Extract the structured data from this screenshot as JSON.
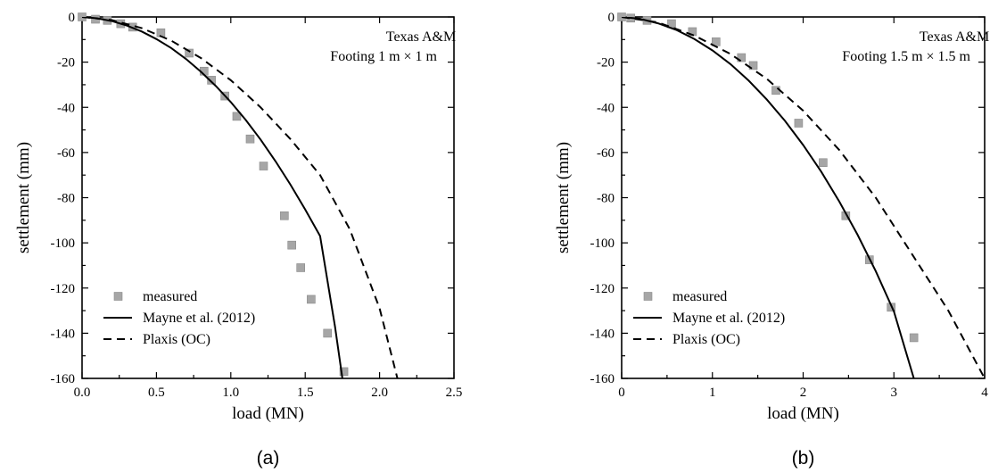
{
  "chart_data": [
    {
      "type": "line",
      "caption": "(a)",
      "xlabel": "load (MN)",
      "ylabel": "settlement (mm)",
      "xlim": [
        0,
        2.5
      ],
      "ylim": [
        -160,
        0
      ],
      "xticks": [
        0.0,
        0.5,
        1.0,
        1.5,
        2.0,
        2.5
      ],
      "xticklabels": [
        "0.0",
        "0.5",
        "1.0",
        "1.5",
        "2.0",
        "2.5"
      ],
      "yticks": [
        0,
        -20,
        -40,
        -60,
        -80,
        -100,
        -120,
        -140,
        -160
      ],
      "yticklabels": [
        "0",
        "-20",
        "-40",
        "-60",
        "-80",
        "-100",
        "-120",
        "-140",
        "-160"
      ],
      "annotation": [
        "Texas A&M",
        "Footing 1 m × 1 m"
      ],
      "legend": [
        "measured",
        "Mayne et al. (2012)",
        "Plaxis (OC)"
      ],
      "legend_position": "bottom-left",
      "series": [
        {
          "name": "measured",
          "style": "square-markers",
          "color": "#a6a6a6",
          "x": [
            0.0,
            0.09,
            0.17,
            0.26,
            0.34,
            0.53,
            0.72,
            0.82,
            0.87,
            0.96,
            1.04,
            1.13,
            1.22,
            1.36,
            1.41,
            1.47,
            1.54,
            1.65,
            1.76
          ],
          "y": [
            0,
            -1,
            -1.5,
            -3,
            -4.5,
            -7,
            -16,
            -24,
            -28,
            -35,
            -44,
            -54,
            -66,
            -88,
            -101,
            -111,
            -125,
            -140,
            -157
          ]
        },
        {
          "name": "Mayne et al. (2012)",
          "style": "solid",
          "color": "#000000",
          "x": [
            0.0,
            0.1,
            0.2,
            0.3,
            0.4,
            0.5,
            0.6,
            0.7,
            0.8,
            0.9,
            1.0,
            1.1,
            1.2,
            1.3,
            1.4,
            1.5,
            1.6,
            1.7,
            1.75
          ],
          "y": [
            0,
            -0.6,
            -1.8,
            -3.8,
            -6.4,
            -9.8,
            -13.8,
            -18.7,
            -24.3,
            -30.6,
            -37.7,
            -45.6,
            -54.3,
            -63.8,
            -74.1,
            -85.2,
            -97,
            -137,
            -160
          ]
        },
        {
          "name": "Plaxis (OC)",
          "style": "dashed",
          "color": "#000000",
          "x": [
            0.0,
            0.2,
            0.4,
            0.6,
            0.8,
            1.0,
            1.2,
            1.4,
            1.6,
            1.8,
            2.0,
            2.12
          ],
          "y": [
            0,
            -1.4,
            -4.9,
            -10.5,
            -18.2,
            -28,
            -40,
            -54,
            -70,
            -94,
            -129,
            -160
          ]
        }
      ]
    },
    {
      "type": "line",
      "caption": "(b)",
      "xlabel": "load (MN)",
      "ylabel": "settlement (mm)",
      "xlim": [
        0,
        4
      ],
      "ylim": [
        -160,
        0
      ],
      "xticks": [
        0,
        1,
        2,
        3,
        4
      ],
      "xticklabels": [
        "0",
        "1",
        "2",
        "3",
        "4"
      ],
      "yticks": [
        0,
        -20,
        -40,
        -60,
        -80,
        -100,
        -120,
        -140,
        -160
      ],
      "yticklabels": [
        "0",
        "-20",
        "-40",
        "-60",
        "-80",
        "-100",
        "-120",
        "-140",
        "-160"
      ],
      "annotation": [
        "Texas A&M",
        "Footing 1.5 m × 1.5 m"
      ],
      "legend": [
        "measured",
        "Mayne et al. (2012)",
        "Plaxis (OC)"
      ],
      "legend_position": "bottom-left",
      "series": [
        {
          "name": "measured",
          "style": "square-markers",
          "color": "#a6a6a6",
          "x": [
            0.0,
            0.1,
            0.28,
            0.55,
            0.78,
            1.04,
            1.32,
            1.45,
            1.7,
            1.95,
            2.22,
            2.47,
            2.73,
            2.97,
            3.22
          ],
          "y": [
            0,
            -0.5,
            -1.5,
            -3,
            -6.5,
            -11,
            -18,
            -21.5,
            -32.5,
            -47,
            -64.5,
            -88,
            -107.5,
            -128.5,
            -142
          ]
        },
        {
          "name": "Mayne et al. (2012)",
          "style": "solid",
          "color": "#000000",
          "x": [
            0.0,
            0.2,
            0.4,
            0.6,
            0.8,
            1.0,
            1.2,
            1.4,
            1.6,
            1.8,
            2.0,
            2.2,
            2.4,
            2.6,
            2.8,
            3.0,
            3.22
          ],
          "y": [
            0,
            -0.8,
            -2.8,
            -5.7,
            -9.7,
            -14.8,
            -20.9,
            -28.2,
            -36.6,
            -46,
            -56.7,
            -68.6,
            -81.8,
            -96.4,
            -112.5,
            -130.4,
            -160
          ]
        },
        {
          "name": "Plaxis (OC)",
          "style": "dashed",
          "color": "#000000",
          "x": [
            0.0,
            0.4,
            0.8,
            1.2,
            1.6,
            2.0,
            2.4,
            2.8,
            3.2,
            3.6,
            4.0
          ],
          "y": [
            0,
            -2.4,
            -8.2,
            -16.4,
            -27.4,
            -41.5,
            -59,
            -80,
            -105,
            -130,
            -160
          ]
        }
      ]
    }
  ]
}
